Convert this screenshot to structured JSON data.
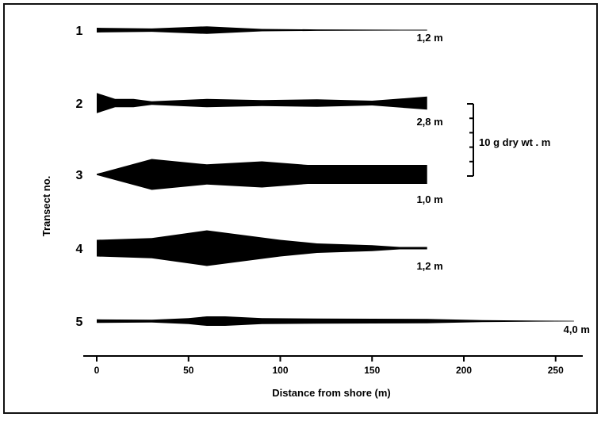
{
  "chart_data": {
    "type": "area",
    "title": "",
    "xlabel": "Distance from shore (m)",
    "ylabel": "Transect no.",
    "xlim": [
      0,
      265
    ],
    "x_ticks": [
      0,
      50,
      100,
      150,
      200,
      250
    ],
    "x_tick_labels": [
      "0",
      "50",
      "100",
      "150",
      "200",
      "250"
    ],
    "grid": false,
    "scale_bar": {
      "label": "10 g dry wt . m",
      "value": 10
    },
    "series": [
      {
        "name": "1",
        "depth_label": "1,2 m",
        "x": [
          0,
          30,
          60,
          90,
          120,
          150,
          180
        ],
        "values": [
          2.0,
          1.4,
          3.2,
          1.0,
          0.6,
          0.4,
          0.3
        ]
      },
      {
        "name": "2",
        "depth_label": "2,8 m",
        "x": [
          0,
          10,
          20,
          30,
          60,
          90,
          120,
          150,
          180
        ],
        "values": [
          8.5,
          3.5,
          3.5,
          1.5,
          3.5,
          2.5,
          3.2,
          2.0,
          5.5
        ]
      },
      {
        "name": "3",
        "depth_label": "1,0 m",
        "x": [
          0,
          30,
          60,
          90,
          115,
          150,
          180
        ],
        "values": [
          0.5,
          13.0,
          8.5,
          11.0,
          8.0,
          8.0,
          8.0
        ]
      },
      {
        "name": "4",
        "depth_label": "1,2 m",
        "x": [
          0,
          30,
          60,
          100,
          120,
          150,
          165,
          180
        ],
        "values": [
          7.0,
          8.5,
          15.0,
          7.0,
          4.0,
          2.5,
          1.0,
          1.0
        ]
      },
      {
        "name": "5",
        "depth_label": "4,0 m",
        "x": [
          0,
          30,
          50,
          60,
          70,
          90,
          120,
          150,
          180,
          210,
          240,
          260
        ],
        "values": [
          1.5,
          1.2,
          2.5,
          4.0,
          4.0,
          2.5,
          2.2,
          2.0,
          1.8,
          0.8,
          0.4,
          0.3
        ]
      }
    ]
  }
}
